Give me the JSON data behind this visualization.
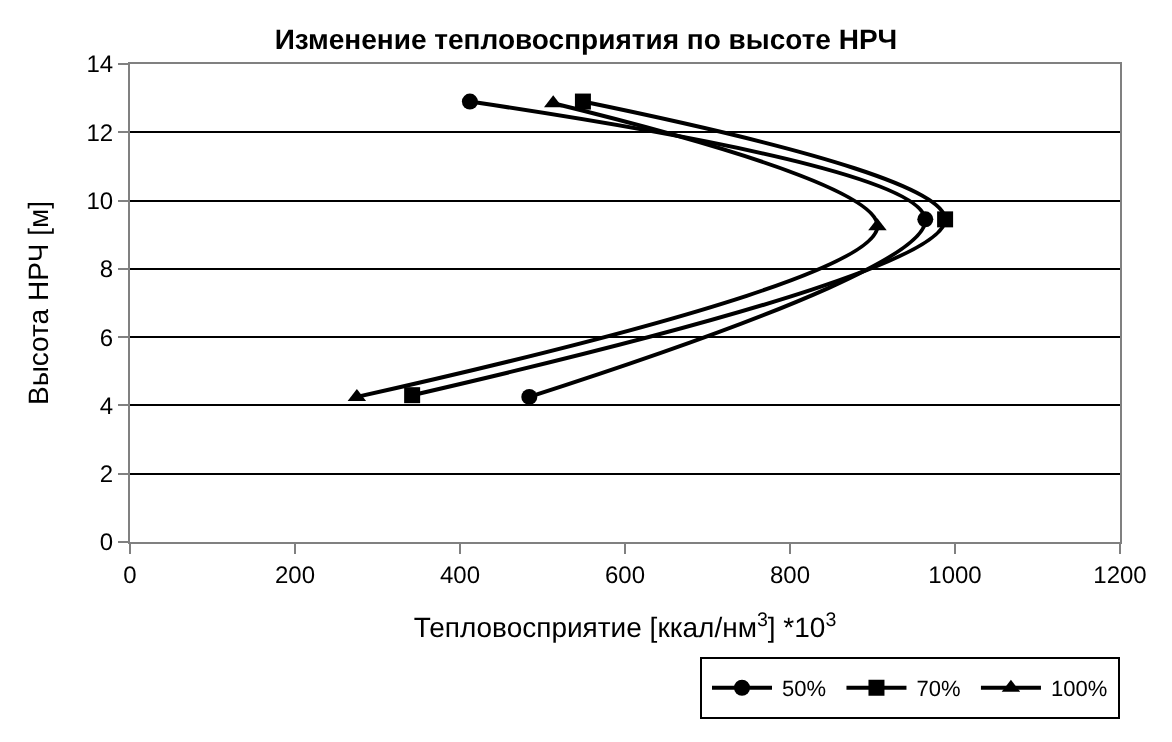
{
  "chart_data": {
    "type": "line",
    "title": "Изменение тепловосприятия по высоте НРЧ",
    "xlabel": "Тепловосприятие [ккал/нм$^{3}$] *10$^{3}$",
    "ylabel": "Высота НРЧ [м]",
    "xlim": [
      0,
      1200
    ],
    "xticks": [
      0,
      200,
      400,
      600,
      800,
      1000,
      1200
    ],
    "ylim": [
      0,
      14
    ],
    "yticks": [
      0,
      2,
      4,
      6,
      8,
      10,
      12,
      14
    ],
    "grid": "y",
    "legend": "bottom right",
    "series": [
      {
        "name": "50%",
        "color": "#000000",
        "marker": "circle",
        "x": [
          412,
          964,
          484
        ],
        "values": [
          12.9,
          9.45,
          4.25
        ]
      },
      {
        "name": "70%",
        "color": "#000000",
        "marker": "square",
        "x": [
          549,
          988,
          342
        ],
        "values": [
          12.9,
          9.45,
          4.3
        ]
      },
      {
        "name": "100%",
        "color": "#000000",
        "marker": "triangle",
        "x": [
          513,
          906,
          275
        ],
        "values": [
          12.85,
          9.25,
          4.25
        ]
      }
    ]
  }
}
